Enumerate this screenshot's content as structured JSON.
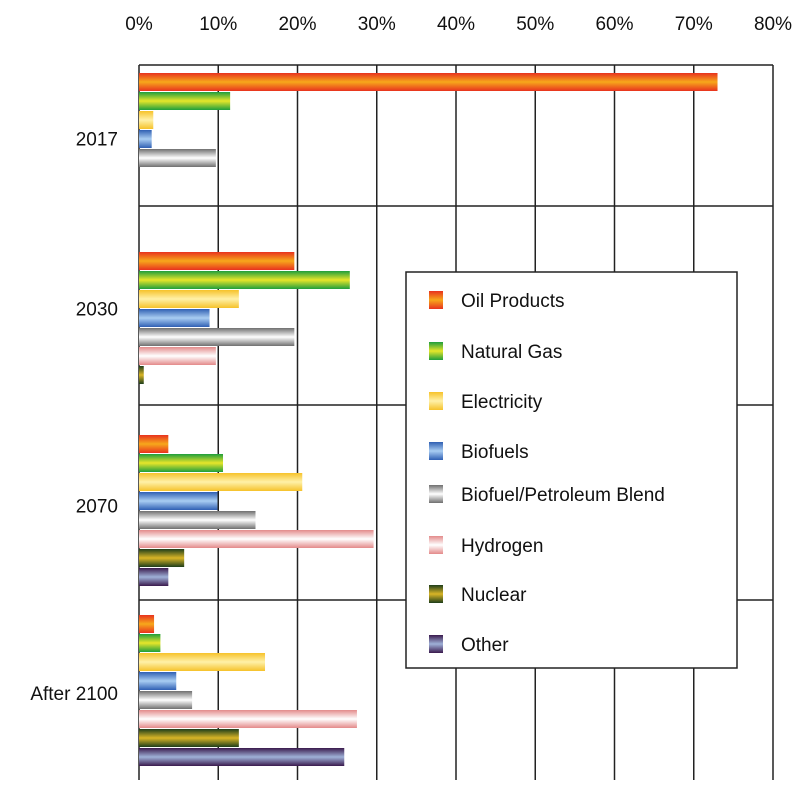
{
  "chart_data": {
    "type": "bar",
    "orientation": "horizontal",
    "title": "",
    "xlabel": "",
    "ylabel": "",
    "xlim": [
      0,
      80
    ],
    "x_ticks": [
      "0%",
      "10%",
      "20%",
      "30%",
      "40%",
      "50%",
      "60%",
      "70%",
      "80%"
    ],
    "grid": true,
    "legend_position": "right-center",
    "categories": [
      "2017",
      "2030",
      "2070",
      "After 2100"
    ],
    "series": [
      {
        "name": "Oil Products",
        "colors": [
          "#e8321e",
          "#f7a81b"
        ],
        "values": [
          73,
          19.6,
          3.7,
          1.9
        ]
      },
      {
        "name": "Natural Gas",
        "colors": [
          "#1f9e3c",
          "#e7e62a"
        ],
        "values": [
          11.5,
          26.6,
          10.6,
          2.7
        ]
      },
      {
        "name": "Electricity",
        "colors": [
          "#f6c22a",
          "#fff1a8"
        ],
        "values": [
          1.8,
          12.6,
          20.6,
          15.9
        ]
      },
      {
        "name": "Biofuels",
        "colors": [
          "#2f5fb3",
          "#a9cdf2"
        ],
        "values": [
          1.6,
          8.9,
          9.9,
          4.7
        ]
      },
      {
        "name": "Biofuel/Petroleum Blend",
        "colors": [
          "#6f6f6f",
          "#ffffff"
        ],
        "values": [
          9.7,
          19.6,
          14.7,
          6.7
        ]
      },
      {
        "name": "Hydrogen",
        "colors": [
          "#e38a8a",
          "#ffffff"
        ],
        "values": [
          null,
          9.7,
          29.6,
          27.5
        ]
      },
      {
        "name": "Nuclear",
        "colors": [
          "#1d3d1a",
          "#d9b526"
        ],
        "values": [
          null,
          0.6,
          5.7,
          12.6
        ]
      },
      {
        "name": "Other",
        "colors": [
          "#3a1a4d",
          "#9fb1d8"
        ],
        "values": [
          null,
          null,
          3.7,
          25.9
        ]
      }
    ]
  }
}
